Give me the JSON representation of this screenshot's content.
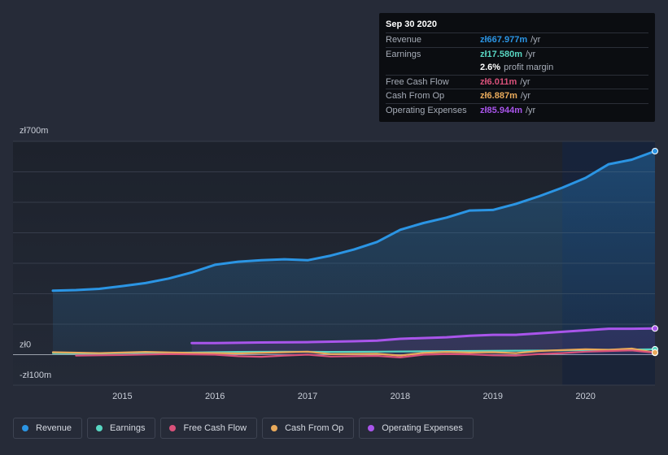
{
  "chart_data": {
    "type": "area",
    "currency_prefix": "zł",
    "y_tick_labels": [
      "zł700m",
      "zł0",
      "-zł100m"
    ],
    "ylim": [
      -100,
      700
    ],
    "xlim": [
      2013.82,
      2020.75
    ],
    "x_tick_labels": [
      "2015",
      "2016",
      "2017",
      "2018",
      "2019",
      "2020"
    ],
    "x_ticks": [
      2015,
      2016,
      2017,
      2018,
      2019,
      2020
    ],
    "highlight_range": [
      2019.75,
      2020.75
    ],
    "grid": true,
    "legend_position": "bottom",
    "series": [
      {
        "name": "Revenue",
        "color": "#2b95e4",
        "filled": true,
        "points": [
          [
            2014.25,
            210
          ],
          [
            2014.5,
            212
          ],
          [
            2014.75,
            216
          ],
          [
            2015.0,
            225
          ],
          [
            2015.25,
            235
          ],
          [
            2015.5,
            250
          ],
          [
            2015.75,
            270
          ],
          [
            2016.0,
            295
          ],
          [
            2016.25,
            305
          ],
          [
            2016.5,
            310
          ],
          [
            2016.75,
            313
          ],
          [
            2017.0,
            310
          ],
          [
            2017.25,
            325
          ],
          [
            2017.5,
            345
          ],
          [
            2017.75,
            370
          ],
          [
            2018.0,
            410
          ],
          [
            2018.25,
            432
          ],
          [
            2018.5,
            450
          ],
          [
            2018.75,
            473
          ],
          [
            2019.0,
            475
          ],
          [
            2019.25,
            495
          ],
          [
            2019.5,
            520
          ],
          [
            2019.75,
            548
          ],
          [
            2020.0,
            580
          ],
          [
            2020.25,
            625
          ],
          [
            2020.5,
            640
          ],
          [
            2020.75,
            667.977
          ]
        ]
      },
      {
        "name": "Earnings",
        "color": "#58d6c2",
        "filled": false,
        "points": [
          [
            2014.25,
            5
          ],
          [
            2014.75,
            4
          ],
          [
            2015.25,
            6
          ],
          [
            2015.75,
            7
          ],
          [
            2016.25,
            9
          ],
          [
            2016.75,
            10
          ],
          [
            2017.25,
            9
          ],
          [
            2017.75,
            10
          ],
          [
            2018.25,
            11
          ],
          [
            2018.75,
            12
          ],
          [
            2019.25,
            13
          ],
          [
            2019.75,
            14
          ],
          [
            2020.25,
            16
          ],
          [
            2020.75,
            17.58
          ]
        ]
      },
      {
        "name": "Free Cash Flow",
        "color": "#d9517a",
        "filled": false,
        "points": [
          [
            2014.5,
            -3
          ],
          [
            2015.0,
            -1
          ],
          [
            2015.5,
            2
          ],
          [
            2016.0,
            0
          ],
          [
            2016.25,
            -5
          ],
          [
            2016.5,
            -7
          ],
          [
            2016.75,
            -3
          ],
          [
            2017.0,
            0
          ],
          [
            2017.25,
            -6
          ],
          [
            2017.5,
            -5
          ],
          [
            2017.75,
            -4
          ],
          [
            2018.0,
            -9
          ],
          [
            2018.25,
            0
          ],
          [
            2018.5,
            2
          ],
          [
            2018.75,
            1
          ],
          [
            2019.0,
            -2
          ],
          [
            2019.25,
            -3
          ],
          [
            2019.5,
            2
          ],
          [
            2019.75,
            5
          ],
          [
            2020.0,
            10
          ],
          [
            2020.25,
            12
          ],
          [
            2020.5,
            14
          ],
          [
            2020.75,
            6.011
          ]
        ]
      },
      {
        "name": "Cash From Op",
        "color": "#e9aa5b",
        "filled": false,
        "points": [
          [
            2014.25,
            8
          ],
          [
            2014.75,
            5
          ],
          [
            2015.25,
            9
          ],
          [
            2015.75,
            6
          ],
          [
            2016.25,
            4
          ],
          [
            2016.75,
            8
          ],
          [
            2017.0,
            10
          ],
          [
            2017.25,
            2
          ],
          [
            2017.75,
            3
          ],
          [
            2018.0,
            -3
          ],
          [
            2018.25,
            6
          ],
          [
            2018.5,
            9
          ],
          [
            2018.75,
            7
          ],
          [
            2019.0,
            8
          ],
          [
            2019.25,
            5
          ],
          [
            2019.5,
            12
          ],
          [
            2019.75,
            15
          ],
          [
            2020.0,
            18
          ],
          [
            2020.25,
            16
          ],
          [
            2020.5,
            20
          ],
          [
            2020.75,
            6.887
          ]
        ]
      },
      {
        "name": "Operating Expenses",
        "color": "#a955eb",
        "filled": true,
        "points": [
          [
            2015.75,
            38
          ],
          [
            2016.0,
            38
          ],
          [
            2016.5,
            40
          ],
          [
            2017.0,
            41
          ],
          [
            2017.5,
            44
          ],
          [
            2017.75,
            46
          ],
          [
            2018.0,
            52
          ],
          [
            2018.5,
            57
          ],
          [
            2018.75,
            62
          ],
          [
            2019.0,
            65
          ],
          [
            2019.25,
            65
          ],
          [
            2019.5,
            70
          ],
          [
            2019.75,
            75
          ],
          [
            2020.0,
            80
          ],
          [
            2020.25,
            85
          ],
          [
            2020.5,
            85
          ],
          [
            2020.75,
            85.944
          ]
        ]
      }
    ]
  },
  "tooltip": {
    "date": "Sep 30 2020",
    "rows": [
      {
        "label": "Revenue",
        "value": "zł667.977m",
        "unit": "/yr",
        "color": "#2b95e4"
      },
      {
        "label": "Earnings",
        "value": "zł17.580m",
        "unit": "/yr",
        "color": "#58d6c2"
      },
      {
        "label": "",
        "value": "2.6%",
        "unit": "profit margin",
        "color": "#ffffff"
      },
      {
        "label": "Free Cash Flow",
        "value": "zł6.011m",
        "unit": "/yr",
        "color": "#d9517a"
      },
      {
        "label": "Cash From Op",
        "value": "zł6.887m",
        "unit": "/yr",
        "color": "#e9aa5b"
      },
      {
        "label": "Operating Expenses",
        "value": "zł85.944m",
        "unit": "/yr",
        "color": "#a955eb"
      }
    ]
  },
  "legend": [
    {
      "label": "Revenue",
      "color": "#2b95e4"
    },
    {
      "label": "Earnings",
      "color": "#58d6c2"
    },
    {
      "label": "Free Cash Flow",
      "color": "#d9517a"
    },
    {
      "label": "Cash From Op",
      "color": "#e9aa5b"
    },
    {
      "label": "Operating Expenses",
      "color": "#a955eb"
    }
  ]
}
